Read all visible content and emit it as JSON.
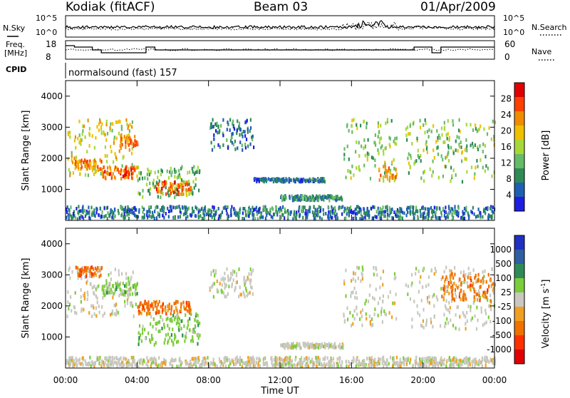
{
  "header": {
    "station": "Kodiak (fitACF)",
    "beam": "Beam 03",
    "date": "01/Apr/2009"
  },
  "noise_panel": {
    "left_label": "N.Sky",
    "right_label": "N.Search",
    "left_ticks": [
      "10^5",
      "10^0"
    ],
    "right_ticks": [
      "10^5",
      "10^0"
    ]
  },
  "freq_panel": {
    "left_label_1": "Freq.",
    "left_label_2": "[MHz]",
    "right_label": "Nave",
    "left_ticks": [
      "18",
      "8"
    ],
    "right_ticks": [
      "60",
      "0"
    ]
  },
  "cpid_panel": {
    "label": "CPID",
    "value": "normalsound (fast) 157"
  },
  "colors": {
    "power_scale": [
      "#1e1ee0",
      "#1e5fb4",
      "#2e8b57",
      "#66bb66",
      "#a8d838",
      "#f0c000",
      "#f08c00",
      "#ff4000",
      "#e00000"
    ],
    "velocity_scale": [
      "#2030c0",
      "#2f5fa0",
      "#2e8b57",
      "#7ccd3a",
      "#c8c8c0",
      "#f0a020",
      "#f07000",
      "#ff3000",
      "#e00000"
    ]
  },
  "chart_data": [
    {
      "type": "heatmap",
      "title": "",
      "xlabel": "",
      "ylabel": "Slant Range [km]",
      "ylim": [
        0,
        4500
      ],
      "yticks": [
        1000,
        2000,
        3000,
        4000
      ],
      "xlim": [
        0,
        24
      ],
      "colorbar": {
        "label": "Power [dB]",
        "range": [
          0,
          32
        ],
        "ticks": [
          "4",
          "8",
          "12",
          "16",
          "20",
          "24",
          "28"
        ]
      },
      "regions": [
        {
          "t": [
            0.0,
            3.9
          ],
          "range": [
            1500,
            3300
          ],
          "value": 18
        },
        {
          "t": [
            0.5,
            2.0
          ],
          "range": [
            1700,
            2000
          ],
          "value": 24
        },
        {
          "t": [
            2.0,
            4.0
          ],
          "range": [
            1400,
            1800
          ],
          "value": 26
        },
        {
          "t": [
            3.0,
            4.0
          ],
          "range": [
            2400,
            2800
          ],
          "value": 24
        },
        {
          "t": [
            4.0,
            7.5
          ],
          "range": [
            800,
            1800
          ],
          "value": 12
        },
        {
          "t": [
            5.0,
            7.0
          ],
          "range": [
            900,
            1300
          ],
          "value": 26
        },
        {
          "t": [
            8.0,
            10.5
          ],
          "range": [
            2300,
            3300
          ],
          "value": 6
        },
        {
          "t": [
            10.5,
            14.5
          ],
          "range": [
            1300,
            1400
          ],
          "value": 6
        },
        {
          "t": [
            12.0,
            15.5
          ],
          "range": [
            700,
            850
          ],
          "value": 8
        },
        {
          "t": [
            15.5,
            18.5
          ],
          "range": [
            1400,
            3300
          ],
          "value": 14
        },
        {
          "t": [
            17.5,
            18.5
          ],
          "range": [
            1300,
            1800
          ],
          "value": 22
        },
        {
          "t": [
            19.0,
            24.0
          ],
          "range": [
            1300,
            3300
          ],
          "value": 14
        },
        {
          "t": [
            0.0,
            24.0
          ],
          "range": [
            100,
            500
          ],
          "value": 6
        }
      ]
    },
    {
      "type": "heatmap",
      "title": "",
      "xlabel": "Time UT",
      "ylabel": "Slant Range [km]",
      "ylim": [
        0,
        4500
      ],
      "yticks": [
        1000,
        2000,
        3000,
        4000
      ],
      "xlim": [
        0,
        24
      ],
      "xticks": [
        "00:00",
        "04:00",
        "08:00",
        "12:00",
        "16:00",
        "20:00",
        "00:00"
      ],
      "colorbar": {
        "label": "Velocity [m s^-1]",
        "ticks": [
          "1000",
          "500",
          "100",
          "25",
          "-25",
          "-100",
          "-500",
          "-1000"
        ]
      },
      "regions": [
        {
          "t": [
            0.0,
            3.9
          ],
          "range": [
            1700,
            3300
          ],
          "value": 0
        },
        {
          "t": [
            0.5,
            2.0
          ],
          "range": [
            3000,
            3300
          ],
          "value": -300
        },
        {
          "t": [
            2.0,
            4.0
          ],
          "range": [
            2400,
            2800
          ],
          "value": 80
        },
        {
          "t": [
            4.0,
            7.5
          ],
          "range": [
            800,
            1800
          ],
          "value": 100
        },
        {
          "t": [
            4.0,
            7.0
          ],
          "range": [
            1800,
            2200
          ],
          "value": -300
        },
        {
          "t": [
            8.0,
            10.5
          ],
          "range": [
            2300,
            3300
          ],
          "value": 0
        },
        {
          "t": [
            12.0,
            15.5
          ],
          "range": [
            700,
            850
          ],
          "value": 0
        },
        {
          "t": [
            15.5,
            18.5
          ],
          "range": [
            1400,
            3300
          ],
          "value": 0
        },
        {
          "t": [
            19.0,
            24.0
          ],
          "range": [
            1300,
            3300
          ],
          "value": 0
        },
        {
          "t": [
            21.0,
            24.0
          ],
          "range": [
            2200,
            3100
          ],
          "value": -400
        },
        {
          "t": [
            0.0,
            24.0
          ],
          "range": [
            100,
            400
          ],
          "value": 0
        }
      ]
    }
  ]
}
